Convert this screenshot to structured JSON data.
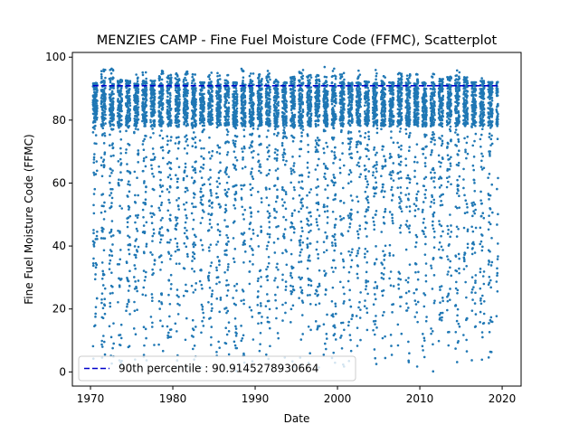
{
  "chart_data": {
    "type": "scatter",
    "title": "MENZIES CAMP - Fine Fuel Moisture Code (FFMC), Scatterplot",
    "xlabel": "Date",
    "ylabel": "Fine Fuel Moisture Code (FFMC)",
    "xlim": [
      1967.8,
      2022.3
    ],
    "ylim": [
      -4.5,
      101.5
    ],
    "x_ticks": [
      1970,
      1980,
      1990,
      2000,
      2010,
      2020
    ],
    "y_ticks": [
      0,
      20,
      40,
      60,
      80,
      100
    ],
    "grid": false,
    "legend_position": "lower-left",
    "point_color": "#1f77b4",
    "reference_line": {
      "label": "90th percentile : 90.9145278930664",
      "value": 90.9145278930664,
      "x_range": [
        1970.3,
        2019.5
      ],
      "color": "#0000cc",
      "style": "dashed"
    },
    "series": [
      {
        "x_range": [
          1970.3,
          2019.5
        ],
        "season": {
          "start_year_fraction": 0.3,
          "end_year_fraction": 0.83
        },
        "daily_points_per_season": 160,
        "value_distribution": {
          "dense_band": [
            78,
            92
          ],
          "season_peak_range": [
            91,
            97
          ],
          "sparse_range": [
            0,
            78
          ]
        }
      }
    ]
  }
}
